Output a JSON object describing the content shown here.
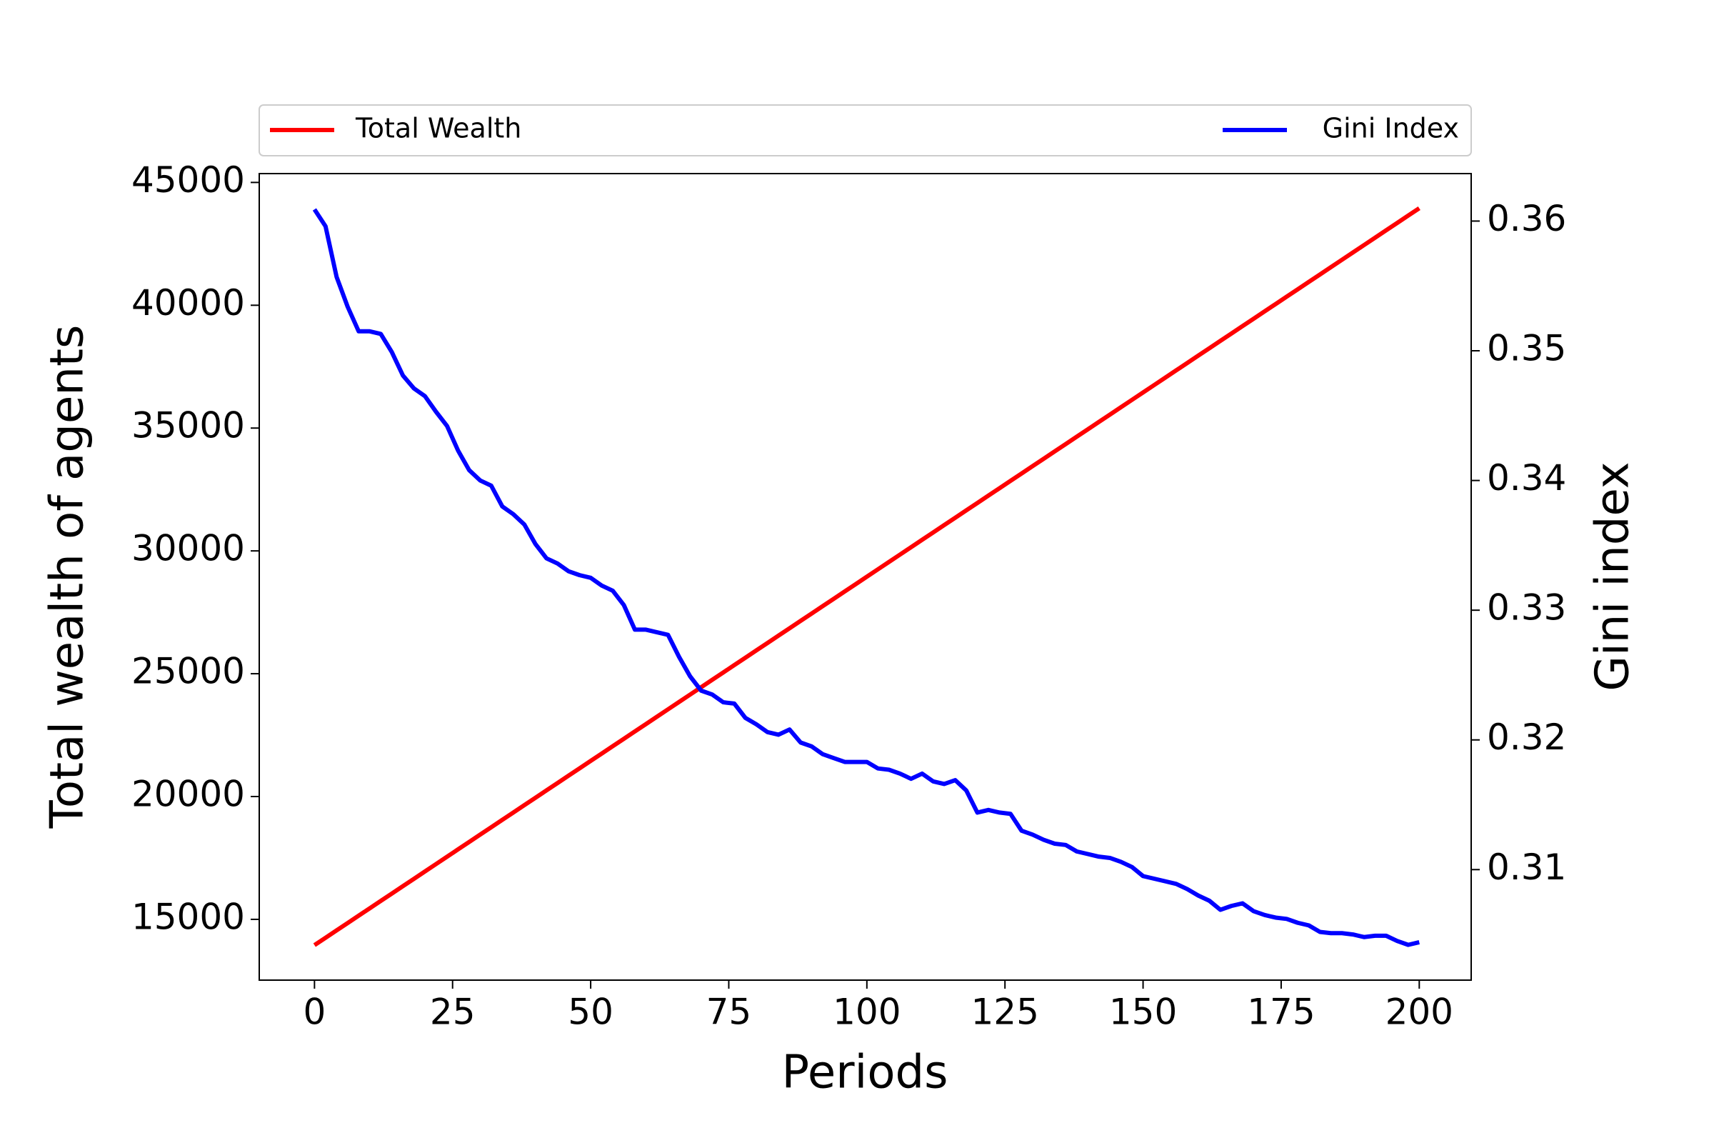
{
  "chart_data": {
    "type": "line",
    "x_label": "Periods",
    "y_label": "Total wealth of agents",
    "y2_label": "Gini index",
    "legend": "above",
    "x": [
      0,
      2,
      4,
      6,
      8,
      10,
      12,
      14,
      16,
      18,
      20,
      22,
      24,
      26,
      28,
      30,
      32,
      34,
      36,
      38,
      40,
      42,
      44,
      46,
      48,
      50,
      52,
      54,
      56,
      58,
      60,
      62,
      64,
      66,
      68,
      70,
      72,
      74,
      76,
      78,
      80,
      82,
      84,
      86,
      88,
      90,
      92,
      94,
      96,
      98,
      100,
      102,
      104,
      106,
      108,
      110,
      112,
      114,
      116,
      118,
      120,
      122,
      124,
      126,
      128,
      130,
      132,
      134,
      136,
      138,
      140,
      142,
      144,
      146,
      148,
      150,
      152,
      154,
      156,
      158,
      160,
      162,
      164,
      166,
      168,
      170,
      172,
      174,
      176,
      178,
      180,
      182,
      184,
      186,
      188,
      190,
      192,
      194,
      196,
      198,
      200
    ],
    "series": [
      {
        "name": "Total Wealth",
        "color": "#ff0000",
        "axis": "y",
        "values": [
          13950,
          14250,
          14550,
          14850,
          15150,
          15450,
          15750,
          16050,
          16350,
          16650,
          16950,
          17250,
          17550,
          17850,
          18150,
          18450,
          18750,
          19050,
          19350,
          19650,
          19950,
          20250,
          20550,
          20850,
          21150,
          21450,
          21750,
          22050,
          22350,
          22650,
          22950,
          23250,
          23550,
          23850,
          24150,
          24450,
          24750,
          25050,
          25350,
          25650,
          25950,
          26250,
          26550,
          26850,
          27150,
          27450,
          27750,
          28050,
          28350,
          28650,
          28950,
          29250,
          29550,
          29850,
          30150,
          30450,
          30750,
          31050,
          31350,
          31650,
          31950,
          32250,
          32550,
          32850,
          33150,
          33450,
          33750,
          34050,
          34350,
          34650,
          34950,
          35250,
          35550,
          35850,
          36150,
          36450,
          36750,
          37050,
          37350,
          37650,
          37950,
          38250,
          38550,
          38850,
          39150,
          39450,
          39750,
          40050,
          40350,
          40650,
          40950,
          41250,
          41550,
          41850,
          42150,
          42450,
          42750,
          43050,
          43350,
          43650,
          43950
        ]
      },
      {
        "name": "Gini Index",
        "color": "#0000ff",
        "axis": "y2",
        "values": [
          0.3609,
          0.3596,
          0.3557,
          0.3534,
          0.3515,
          0.3515,
          0.3513,
          0.3499,
          0.3481,
          0.3471,
          0.3465,
          0.3453,
          0.3442,
          0.3423,
          0.3408,
          0.34,
          0.3396,
          0.338,
          0.3374,
          0.3366,
          0.3351,
          0.334,
          0.3336,
          0.333,
          0.3327,
          0.3325,
          0.3319,
          0.3315,
          0.3304,
          0.3285,
          0.3285,
          0.3283,
          0.3281,
          0.3264,
          0.3249,
          0.3238,
          0.3235,
          0.3229,
          0.3228,
          0.3217,
          0.3212,
          0.3206,
          0.3204,
          0.3208,
          0.3198,
          0.3195,
          0.3189,
          0.3186,
          0.3183,
          0.3183,
          0.3183,
          0.3178,
          0.3177,
          0.3174,
          0.317,
          0.3174,
          0.3168,
          0.3166,
          0.3169,
          0.3161,
          0.3144,
          0.3146,
          0.3144,
          0.3143,
          0.313,
          0.3127,
          0.3123,
          0.312,
          0.3119,
          0.3114,
          0.3112,
          0.311,
          0.3109,
          0.3106,
          0.3102,
          0.3095,
          0.3093,
          0.3091,
          0.3089,
          0.3085,
          0.308,
          0.3076,
          0.3069,
          0.3072,
          0.3074,
          0.3068,
          0.3065,
          0.3063,
          0.3062,
          0.3059,
          0.3057,
          0.3052,
          0.3051,
          0.3051,
          0.305,
          0.3048,
          0.3049,
          0.3049,
          0.3045,
          0.3042,
          0.3044
        ]
      }
    ],
    "xlim": [
      -10,
      209.4
    ],
    "xticks": [
      0,
      25,
      50,
      75,
      100,
      125,
      150,
      175,
      200
    ],
    "ylim": [
      12526,
      45360
    ],
    "yticks": [
      15000,
      20000,
      25000,
      30000,
      35000,
      40000,
      45000
    ],
    "y2lim": [
      0.30148,
      0.36366
    ],
    "y2ticks": [
      0.31,
      0.32,
      0.33,
      0.34,
      0.35,
      0.36
    ]
  }
}
